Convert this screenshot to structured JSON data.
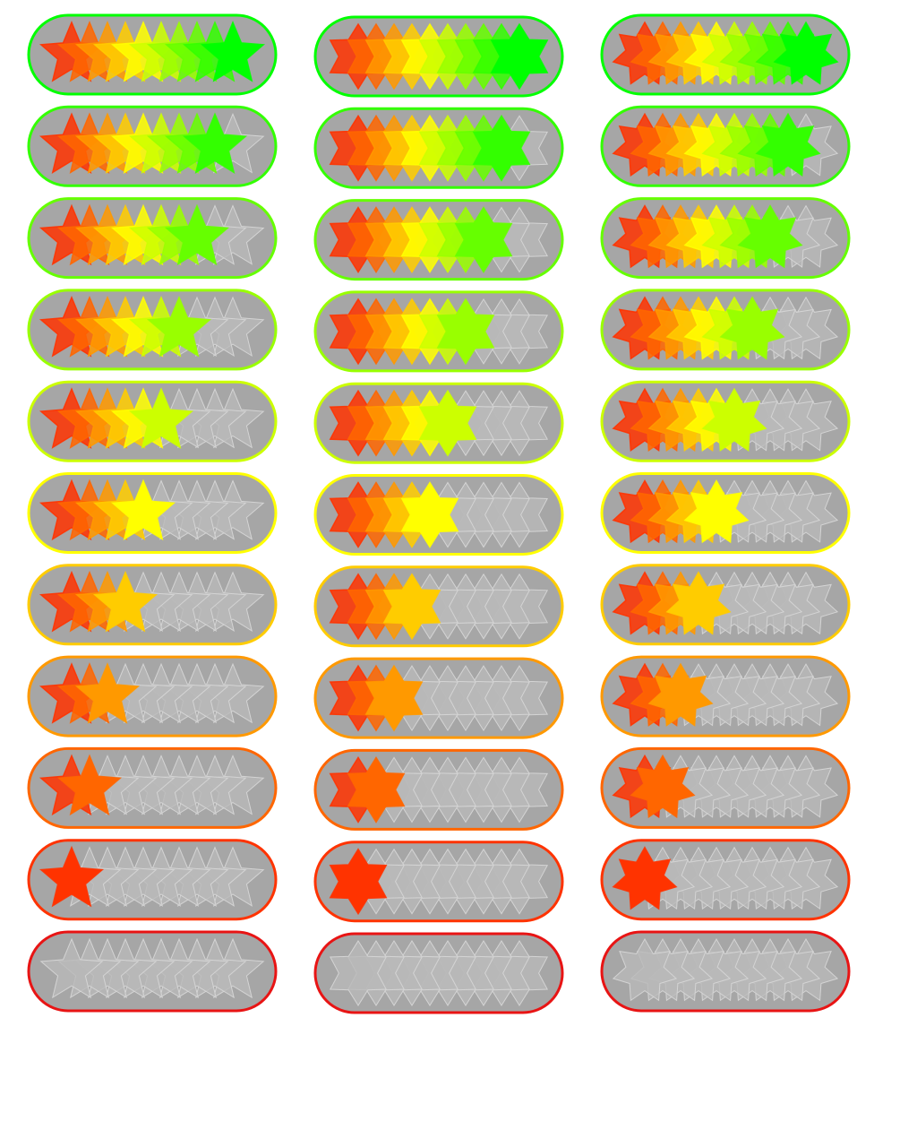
{
  "ratings": [
    10,
    9,
    8,
    7,
    6,
    5,
    4,
    3,
    2,
    1,
    0
  ]
}
